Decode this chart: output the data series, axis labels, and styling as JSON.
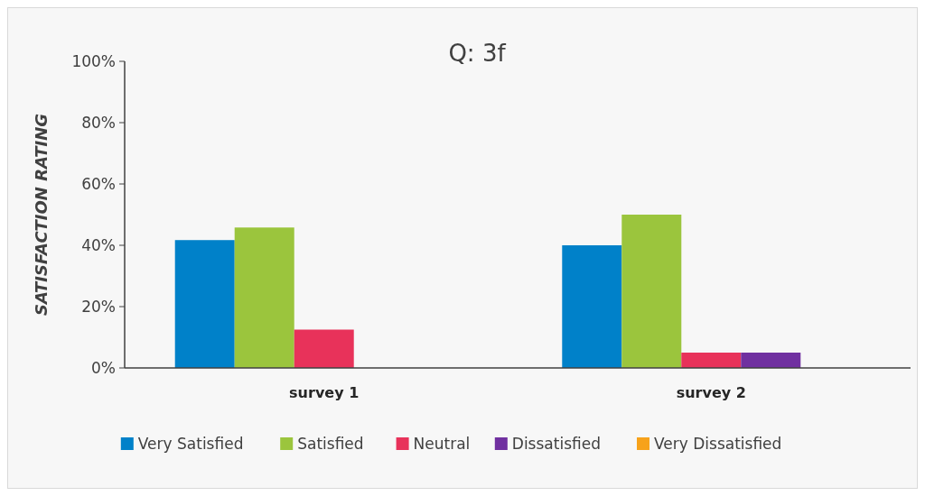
{
  "chart_data": {
    "type": "bar",
    "title": "Q: 3f",
    "ylabel": "SATISFACTION RATING",
    "categories": [
      "survey 1",
      "survey 2"
    ],
    "series": [
      {
        "name": "Very Satisfied",
        "color": "#0081c9",
        "values": [
          41.7,
          40
        ]
      },
      {
        "name": "Satisfied",
        "color": "#9bc53d",
        "values": [
          45.8,
          50
        ]
      },
      {
        "name": "Neutral",
        "color": "#e8325a",
        "values": [
          12.5,
          5
        ]
      },
      {
        "name": "Dissatisfied",
        "color": "#7030a0",
        "values": [
          0,
          5
        ]
      },
      {
        "name": "Very Dissatisfied",
        "color": "#f7a21b",
        "values": [
          0,
          0
        ]
      }
    ],
    "ylim": [
      0,
      100
    ],
    "yticks": [
      {
        "value": 0,
        "label": "0%"
      },
      {
        "value": 20,
        "label": "20%"
      },
      {
        "value": 40,
        "label": "40%"
      },
      {
        "value": 60,
        "label": "60%"
      },
      {
        "value": 80,
        "label": "80%"
      },
      {
        "value": 100,
        "label": "100%"
      }
    ],
    "grid": false,
    "legend": "bottom"
  }
}
